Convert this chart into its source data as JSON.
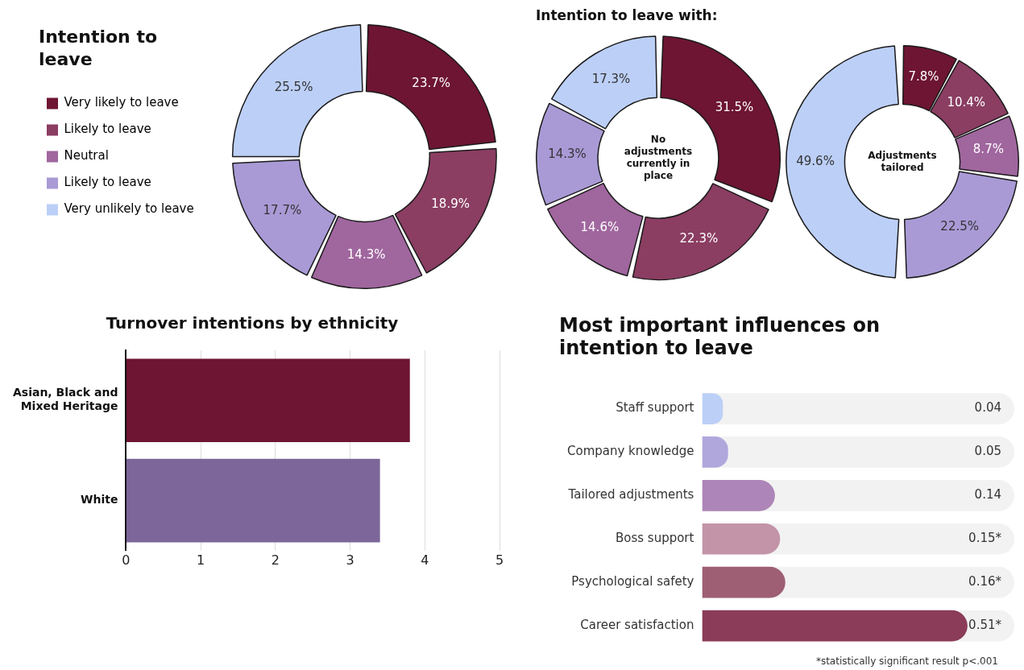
{
  "chart_data": [
    {
      "type": "donut",
      "title": "Intention to leave",
      "categories": [
        "Very likely to leave",
        "Likely to leave",
        "Neutral",
        "Likely to leave",
        "Very unlikely to leave"
      ],
      "values": [
        23.7,
        18.9,
        14.3,
        17.7,
        25.5
      ],
      "value_labels": [
        "23.7%",
        "18.9%",
        "14.3%",
        "17.7%",
        "25.5%"
      ],
      "colors": [
        "#6d1532",
        "#8b3d62",
        "#a0669e",
        "#a99ad6",
        "#bccff7"
      ],
      "legend": "left"
    },
    {
      "type": "donut",
      "title": "Intention to leave with:",
      "categories": [
        null,
        null,
        null,
        null,
        null
      ],
      "values": [
        31.5,
        22.3,
        14.6,
        14.3,
        17.3
      ],
      "value_labels": [
        "31.5%",
        "22.3%",
        "14.6%",
        "14.3%",
        "17.3%"
      ],
      "colors": [
        "#6d1532",
        "#8b3d62",
        "#a0669e",
        "#a99ad6",
        "#bccff7"
      ],
      "annotations": [
        "No adjustments currently in place"
      ]
    },
    {
      "type": "donut",
      "categories": [
        null,
        null,
        null,
        null,
        null
      ],
      "values": [
        7.8,
        10.4,
        8.7,
        22.5,
        49.6
      ],
      "value_labels": [
        "7.8%",
        "10.4%",
        "8.7%",
        "22.5%",
        "49.6%"
      ],
      "colors": [
        "#6d1532",
        "#8b3d62",
        "#a0669e",
        "#a99ad6",
        "#bccff7"
      ],
      "annotations": [
        "Adjustments tailored"
      ]
    },
    {
      "type": "bar",
      "orientation": "horizontal",
      "title": "Turnover intentions by ethnicity",
      "categories": [
        "Asian, Black and Mixed Heritage",
        "White"
      ],
      "values": [
        3.8,
        3.4
      ],
      "colors": [
        "#6d1532",
        "#7d6699"
      ],
      "xlim": [
        0,
        5
      ],
      "xticks": [
        0,
        1,
        2,
        3,
        4,
        5
      ],
      "grid": "x"
    },
    {
      "type": "bar",
      "orientation": "horizontal",
      "title": "Most important influences on intention to leave",
      "categories": [
        "Staff support",
        "Company knowledge",
        "Tailored adjustments",
        "Boss support",
        "Psychological safety",
        "Career satisfaction"
      ],
      "values": [
        0.04,
        0.05,
        0.14,
        0.15,
        0.16,
        0.51
      ],
      "value_labels": [
        "0.04",
        "0.05",
        "0.14",
        "0.15*",
        "0.16*",
        "0.51*"
      ],
      "colors": [
        "#bcd0f7",
        "#b0a8dc",
        "#ad85b8",
        "#c394a8",
        "#9e5f74",
        "#8a3c58"
      ],
      "tick_labels": "y",
      "annotations": [
        "*statistically significant result p<.001"
      ]
    }
  ]
}
